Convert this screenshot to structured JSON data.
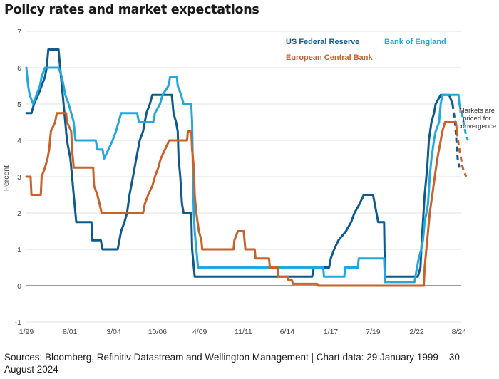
{
  "title": "Policy rates and market expectations",
  "source": "Sources: Bloomberg, Refinitiv Datastream and Wellington Management  |  Chart data: 29 January 1999 – 30 August 2024",
  "chart_data": {
    "type": "line",
    "title": "Policy rates and market expectations",
    "ylabel": "Percent",
    "xlabel": "",
    "ylim": [
      -1,
      7
    ],
    "yticks": [
      -1,
      0,
      1,
      2,
      3,
      4,
      5,
      6,
      7
    ],
    "xlim": [
      1999.0,
      2024.67
    ],
    "xticks": [
      {
        "label": "1/99",
        "x": 1999.0
      },
      {
        "label": "8/01",
        "x": 2001.58
      },
      {
        "label": "3/04",
        "x": 2004.17
      },
      {
        "label": "10/06",
        "x": 2006.75
      },
      {
        "label": "4/09",
        "x": 2009.25
      },
      {
        "label": "11/11",
        "x": 2011.83
      },
      {
        "label": "6/14",
        "x": 2014.42
      },
      {
        "label": "1/17",
        "x": 2017.0
      },
      {
        "label": "7/19",
        "x": 2019.5
      },
      {
        "label": "2/22",
        "x": 2022.08
      },
      {
        "label": "8/24",
        "x": 2024.58
      }
    ],
    "grid": "horizontal",
    "legend_position": "top-right",
    "annotation": "Markets are priced for convergence",
    "series": [
      {
        "name": "US Federal Reserve",
        "color": "#0f5a8c",
        "values": [
          [
            1999.0,
            4.75
          ],
          [
            1999.3,
            4.75
          ],
          [
            1999.45,
            5.0
          ],
          [
            1999.7,
            5.25
          ],
          [
            1999.9,
            5.5
          ],
          [
            2000.1,
            5.75
          ],
          [
            2000.2,
            6.0
          ],
          [
            2000.3,
            6.5
          ],
          [
            2000.9,
            6.5
          ],
          [
            2001.0,
            6.0
          ],
          [
            2001.1,
            5.5
          ],
          [
            2001.2,
            5.0
          ],
          [
            2001.3,
            4.5
          ],
          [
            2001.4,
            4.0
          ],
          [
            2001.5,
            3.75
          ],
          [
            2001.6,
            3.5
          ],
          [
            2001.7,
            3.0
          ],
          [
            2001.8,
            2.5
          ],
          [
            2001.9,
            2.0
          ],
          [
            2001.95,
            1.75
          ],
          [
            2002.85,
            1.75
          ],
          [
            2002.9,
            1.25
          ],
          [
            2003.4,
            1.25
          ],
          [
            2003.5,
            1.0
          ],
          [
            2004.4,
            1.0
          ],
          [
            2004.5,
            1.25
          ],
          [
            2004.6,
            1.5
          ],
          [
            2004.8,
            1.75
          ],
          [
            2004.95,
            2.0
          ],
          [
            2005.1,
            2.5
          ],
          [
            2005.3,
            3.0
          ],
          [
            2005.5,
            3.5
          ],
          [
            2005.7,
            4.0
          ],
          [
            2005.9,
            4.25
          ],
          [
            2006.1,
            4.75
          ],
          [
            2006.3,
            5.0
          ],
          [
            2006.45,
            5.25
          ],
          [
            2007.6,
            5.25
          ],
          [
            2007.7,
            4.75
          ],
          [
            2007.85,
            4.5
          ],
          [
            2007.95,
            4.25
          ],
          [
            2008.0,
            3.5
          ],
          [
            2008.1,
            3.0
          ],
          [
            2008.2,
            2.25
          ],
          [
            2008.3,
            2.0
          ],
          [
            2008.75,
            2.0
          ],
          [
            2008.8,
            1.0
          ],
          [
            2008.9,
            0.5
          ],
          [
            2008.95,
            0.25
          ],
          [
            2015.9,
            0.25
          ],
          [
            2016.0,
            0.5
          ],
          [
            2016.9,
            0.5
          ],
          [
            2017.0,
            0.75
          ],
          [
            2017.2,
            1.0
          ],
          [
            2017.45,
            1.25
          ],
          [
            2017.9,
            1.5
          ],
          [
            2018.2,
            1.75
          ],
          [
            2018.4,
            2.0
          ],
          [
            2018.7,
            2.25
          ],
          [
            2018.95,
            2.5
          ],
          [
            2019.5,
            2.5
          ],
          [
            2019.6,
            2.25
          ],
          [
            2019.7,
            2.0
          ],
          [
            2019.8,
            1.75
          ],
          [
            2020.15,
            1.75
          ],
          [
            2020.2,
            0.25
          ],
          [
            2022.15,
            0.25
          ],
          [
            2022.3,
            0.5
          ],
          [
            2022.35,
            1.0
          ],
          [
            2022.45,
            1.75
          ],
          [
            2022.55,
            2.5
          ],
          [
            2022.7,
            3.25
          ],
          [
            2022.8,
            4.0
          ],
          [
            2022.95,
            4.5
          ],
          [
            2023.1,
            4.75
          ],
          [
            2023.2,
            5.0
          ],
          [
            2023.5,
            5.25
          ],
          [
            2024.0,
            5.25
          ],
          [
            2024.2,
            5.0
          ]
        ],
        "forecast": [
          [
            2024.2,
            5.0
          ],
          [
            2024.35,
            4.5
          ],
          [
            2024.5,
            3.5
          ],
          [
            2024.6,
            3.25
          ]
        ]
      },
      {
        "name": "Bank of England",
        "color": "#22a8dc",
        "values": [
          [
            1999.0,
            6.0
          ],
          [
            1999.1,
            5.5
          ],
          [
            1999.2,
            5.25
          ],
          [
            1999.4,
            5.0
          ],
          [
            1999.6,
            5.25
          ],
          [
            1999.8,
            5.5
          ],
          [
            1999.9,
            5.75
          ],
          [
            2000.1,
            6.0
          ],
          [
            2000.9,
            6.0
          ],
          [
            2001.1,
            5.75
          ],
          [
            2001.2,
            5.5
          ],
          [
            2001.3,
            5.25
          ],
          [
            2001.5,
            5.0
          ],
          [
            2001.65,
            4.75
          ],
          [
            2001.8,
            4.5
          ],
          [
            2001.9,
            4.0
          ],
          [
            2003.1,
            4.0
          ],
          [
            2003.2,
            3.75
          ],
          [
            2003.5,
            3.75
          ],
          [
            2003.6,
            3.5
          ],
          [
            2003.85,
            3.75
          ],
          [
            2004.1,
            4.0
          ],
          [
            2004.3,
            4.25
          ],
          [
            2004.45,
            4.5
          ],
          [
            2004.6,
            4.75
          ],
          [
            2005.55,
            4.75
          ],
          [
            2005.65,
            4.5
          ],
          [
            2006.5,
            4.5
          ],
          [
            2006.6,
            4.75
          ],
          [
            2006.9,
            5.0
          ],
          [
            2007.05,
            5.25
          ],
          [
            2007.4,
            5.5
          ],
          [
            2007.5,
            5.75
          ],
          [
            2007.9,
            5.75
          ],
          [
            2007.95,
            5.5
          ],
          [
            2008.15,
            5.25
          ],
          [
            2008.3,
            5.0
          ],
          [
            2008.75,
            5.0
          ],
          [
            2008.8,
            4.5
          ],
          [
            2008.85,
            3.0
          ],
          [
            2008.9,
            2.0
          ],
          [
            2008.95,
            1.5
          ],
          [
            2009.05,
            1.0
          ],
          [
            2009.15,
            0.5
          ],
          [
            2016.55,
            0.5
          ],
          [
            2016.6,
            0.25
          ],
          [
            2017.8,
            0.25
          ],
          [
            2017.85,
            0.5
          ],
          [
            2018.6,
            0.5
          ],
          [
            2018.65,
            0.75
          ],
          [
            2020.15,
            0.75
          ],
          [
            2020.2,
            0.1
          ],
          [
            2021.95,
            0.1
          ],
          [
            2022.0,
            0.25
          ],
          [
            2022.1,
            0.5
          ],
          [
            2022.2,
            0.75
          ],
          [
            2022.35,
            1.0
          ],
          [
            2022.45,
            1.25
          ],
          [
            2022.55,
            1.75
          ],
          [
            2022.75,
            2.25
          ],
          [
            2022.85,
            3.0
          ],
          [
            2022.95,
            3.5
          ],
          [
            2023.1,
            4.0
          ],
          [
            2023.2,
            4.25
          ],
          [
            2023.4,
            4.5
          ],
          [
            2023.5,
            5.0
          ],
          [
            2023.6,
            5.25
          ],
          [
            2024.55,
            5.25
          ],
          [
            2024.6,
            5.0
          ]
        ],
        "forecast": [
          [
            2024.6,
            5.0
          ],
          [
            2024.75,
            4.75
          ],
          [
            2024.95,
            4.25
          ],
          [
            2025.1,
            4.0
          ]
        ]
      },
      {
        "name": "European Central Bank",
        "color": "#c8612a",
        "values": [
          [
            1999.0,
            3.0
          ],
          [
            1999.25,
            3.0
          ],
          [
            1999.3,
            2.5
          ],
          [
            1999.85,
            2.5
          ],
          [
            1999.9,
            3.0
          ],
          [
            2000.1,
            3.25
          ],
          [
            2000.25,
            3.5
          ],
          [
            2000.35,
            3.75
          ],
          [
            2000.45,
            4.25
          ],
          [
            2000.7,
            4.5
          ],
          [
            2000.8,
            4.75
          ],
          [
            2001.35,
            4.75
          ],
          [
            2001.4,
            4.5
          ],
          [
            2001.65,
            4.25
          ],
          [
            2001.7,
            3.75
          ],
          [
            2001.8,
            3.25
          ],
          [
            2002.95,
            3.25
          ],
          [
            2003.0,
            2.75
          ],
          [
            2003.2,
            2.5
          ],
          [
            2003.45,
            2.0
          ],
          [
            2005.9,
            2.0
          ],
          [
            2006.0,
            2.25
          ],
          [
            2006.2,
            2.5
          ],
          [
            2006.45,
            2.75
          ],
          [
            2006.6,
            3.0
          ],
          [
            2006.8,
            3.25
          ],
          [
            2006.95,
            3.5
          ],
          [
            2007.2,
            3.75
          ],
          [
            2007.45,
            4.0
          ],
          [
            2008.5,
            4.0
          ],
          [
            2008.55,
            4.25
          ],
          [
            2008.75,
            4.25
          ],
          [
            2008.8,
            3.75
          ],
          [
            2008.9,
            3.25
          ],
          [
            2008.95,
            2.5
          ],
          [
            2009.05,
            2.0
          ],
          [
            2009.2,
            1.5
          ],
          [
            2009.35,
            1.25
          ],
          [
            2009.4,
            1.0
          ],
          [
            2011.25,
            1.0
          ],
          [
            2011.3,
            1.25
          ],
          [
            2011.5,
            1.5
          ],
          [
            2011.85,
            1.5
          ],
          [
            2011.9,
            1.25
          ],
          [
            2011.95,
            1.0
          ],
          [
            2012.5,
            1.0
          ],
          [
            2012.55,
            0.75
          ],
          [
            2013.35,
            0.75
          ],
          [
            2013.4,
            0.5
          ],
          [
            2013.85,
            0.5
          ],
          [
            2013.9,
            0.25
          ],
          [
            2014.45,
            0.25
          ],
          [
            2014.5,
            0.15
          ],
          [
            2014.7,
            0.15
          ],
          [
            2014.75,
            0.05
          ],
          [
            2016.2,
            0.05
          ],
          [
            2016.25,
            0.0
          ],
          [
            2022.5,
            0.0
          ],
          [
            2022.55,
            0.5
          ],
          [
            2022.7,
            1.25
          ],
          [
            2022.85,
            2.0
          ],
          [
            2023.0,
            2.5
          ],
          [
            2023.15,
            3.0
          ],
          [
            2023.3,
            3.5
          ],
          [
            2023.4,
            3.75
          ],
          [
            2023.6,
            4.25
          ],
          [
            2023.75,
            4.5
          ],
          [
            2024.4,
            4.5
          ],
          [
            2024.45,
            4.25
          ]
        ],
        "forecast": [
          [
            2024.45,
            4.25
          ],
          [
            2024.6,
            3.75
          ],
          [
            2024.8,
            3.25
          ],
          [
            2025.0,
            3.0
          ]
        ]
      }
    ]
  }
}
